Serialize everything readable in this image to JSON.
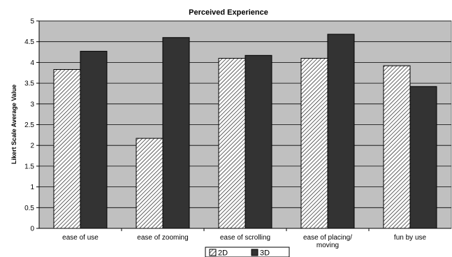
{
  "chart_data": {
    "type": "bar",
    "title": "Perceived Experience",
    "ylabel": "Likert Scale Average Value",
    "xlabel": "",
    "ylim": [
      0,
      5
    ],
    "yticks": [
      "0",
      "0.5",
      "1",
      "1.5",
      "2",
      "2.5",
      "3",
      "3.5",
      "4",
      "4.5",
      "5"
    ],
    "categories": [
      [
        "ease of use"
      ],
      [
        "ease of zooming"
      ],
      [
        "ease of scrolling"
      ],
      [
        "ease of placing/",
        "moving"
      ],
      [
        "fun by use"
      ]
    ],
    "series": [
      {
        "name": "2D",
        "values": [
          3.83,
          2.17,
          4.1,
          4.1,
          3.92
        ],
        "fill": "hatch"
      },
      {
        "name": "3D",
        "values": [
          4.27,
          4.6,
          4.17,
          4.68,
          3.42
        ],
        "fill": "#333333"
      }
    ],
    "grid": true,
    "legend_position": "bottom",
    "colors": {
      "plot_bg": "#c0c0c0",
      "grid": "#000000",
      "dark_bar": "#333333"
    }
  }
}
